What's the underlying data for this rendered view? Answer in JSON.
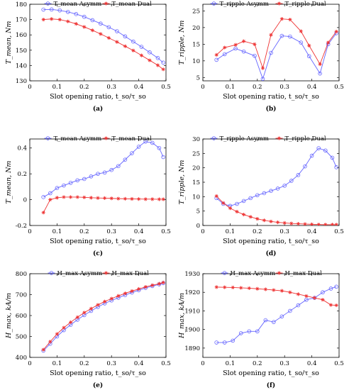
{
  "chart_data": [
    {
      "type": "line",
      "panel_label": "(a)",
      "xlabel": "Slot opening ratio, t_so/τ_so",
      "ylabel": "T_mean, Nm",
      "xlim": [
        0,
        0.5
      ],
      "ylim": [
        130,
        180
      ],
      "xticks": [
        0,
        0.1,
        0.2,
        0.3,
        0.4,
        0.5
      ],
      "yticks": [
        130,
        140,
        150,
        160,
        170,
        180
      ],
      "legend": "top-center",
      "series": [
        {
          "name": "T_mean Asymm",
          "color": "#6666ff",
          "marker": "circle",
          "x": [
            0.05,
            0.08,
            0.11,
            0.14,
            0.17,
            0.2,
            0.23,
            0.26,
            0.29,
            0.32,
            0.35,
            0.38,
            0.41,
            0.44,
            0.47,
            0.49
          ],
          "y": [
            176.5,
            176.6,
            176.0,
            175.0,
            173.6,
            171.8,
            169.6,
            167.4,
            165.0,
            162.4,
            159.0,
            155.6,
            152.2,
            148.6,
            144.9,
            141.9
          ]
        },
        {
          "name": "T_mean Dual",
          "color": "#ee3333",
          "marker": "star",
          "x": [
            0.05,
            0.08,
            0.11,
            0.14,
            0.17,
            0.2,
            0.23,
            0.26,
            0.29,
            0.32,
            0.35,
            0.38,
            0.41,
            0.44,
            0.47,
            0.49
          ],
          "y": [
            170.0,
            170.4,
            170.0,
            168.8,
            167.2,
            165.2,
            163.0,
            160.6,
            158.0,
            155.4,
            152.6,
            149.8,
            146.6,
            143.4,
            140.2,
            137.5
          ]
        }
      ]
    },
    {
      "type": "line",
      "panel_label": "(b)",
      "xlabel": "Slot opening ratio, t_so/τ_so",
      "ylabel": "T_ripple, Nm",
      "xlim": [
        0,
        0.5
      ],
      "ylim": [
        4,
        27
      ],
      "xticks": [
        0,
        0.1,
        0.2,
        0.3,
        0.4,
        0.5
      ],
      "yticks": [
        5,
        10,
        15,
        20,
        25
      ],
      "legend": "top-center",
      "series": [
        {
          "name": "T_ripple Asymm",
          "color": "#6666ff",
          "marker": "circle",
          "x": [
            0.05,
            0.08,
            0.12,
            0.15,
            0.19,
            0.22,
            0.25,
            0.29,
            0.32,
            0.36,
            0.39,
            0.43,
            0.46,
            0.49
          ],
          "y": [
            10.3,
            12.0,
            13.7,
            12.8,
            11.5,
            4.6,
            12.4,
            17.5,
            17.3,
            15.5,
            11.4,
            6.2,
            15.0,
            18.3
          ]
        },
        {
          "name": "T_ripple Dual",
          "color": "#ee3333",
          "marker": "star",
          "x": [
            0.05,
            0.08,
            0.12,
            0.15,
            0.19,
            0.22,
            0.25,
            0.29,
            0.32,
            0.36,
            0.39,
            0.43,
            0.46,
            0.49
          ],
          "y": [
            11.8,
            14.0,
            14.8,
            15.9,
            15.0,
            7.8,
            17.8,
            22.6,
            22.4,
            18.9,
            14.6,
            9.0,
            15.5,
            18.8
          ]
        }
      ]
    },
    {
      "type": "line",
      "panel_label": "(c)",
      "xlabel": "Slot opening ratio, t_so/τ_so",
      "ylabel": "T_mean, Nm",
      "xlim": [
        0,
        0.5
      ],
      "ylim": [
        -0.2,
        0.47
      ],
      "xticks": [
        0,
        0.1,
        0.2,
        0.3,
        0.4,
        0.5
      ],
      "yticks": [
        -0.2,
        0,
        0.2,
        0.4
      ],
      "legend": "top-center",
      "series": [
        {
          "name": "T_mean Asymm",
          "color": "#6666ff",
          "marker": "circle",
          "x": [
            0.05,
            0.075,
            0.1,
            0.125,
            0.15,
            0.175,
            0.2,
            0.225,
            0.25,
            0.275,
            0.3,
            0.325,
            0.35,
            0.375,
            0.4,
            0.425,
            0.45,
            0.475,
            0.49
          ],
          "y": [
            0.02,
            0.05,
            0.09,
            0.11,
            0.13,
            0.15,
            0.16,
            0.18,
            0.2,
            0.21,
            0.23,
            0.26,
            0.31,
            0.36,
            0.41,
            0.45,
            0.44,
            0.4,
            0.33
          ]
        },
        {
          "name": "T_mean Dual",
          "color": "#ee3333",
          "marker": "star",
          "x": [
            0.05,
            0.075,
            0.1,
            0.125,
            0.15,
            0.175,
            0.2,
            0.225,
            0.25,
            0.275,
            0.3,
            0.325,
            0.35,
            0.375,
            0.4,
            0.425,
            0.45,
            0.475,
            0.49
          ],
          "y": [
            -0.1,
            0.0,
            0.015,
            0.02,
            0.02,
            0.02,
            0.018,
            0.015,
            0.013,
            0.012,
            0.01,
            0.008,
            0.007,
            0.006,
            0.005,
            0.004,
            0.004,
            0.003,
            0.003
          ]
        }
      ]
    },
    {
      "type": "line",
      "panel_label": "(d)",
      "xlabel": "Slot opening ratio, t_so/τ_so",
      "ylabel": "T_ripple, Nm",
      "xlim": [
        0,
        0.5
      ],
      "ylim": [
        0,
        30
      ],
      "xticks": [
        0,
        0.1,
        0.2,
        0.3,
        0.4,
        0.5
      ],
      "yticks": [
        0,
        5,
        10,
        15,
        20,
        25,
        30
      ],
      "legend": "top-center",
      "series": [
        {
          "name": "T_ripple Asymm",
          "color": "#6666ff",
          "marker": "circle",
          "x": [
            0.05,
            0.075,
            0.1,
            0.125,
            0.15,
            0.175,
            0.2,
            0.225,
            0.25,
            0.275,
            0.3,
            0.325,
            0.35,
            0.375,
            0.4,
            0.425,
            0.45,
            0.475,
            0.49
          ],
          "y": [
            9.5,
            7.5,
            6.8,
            7.5,
            8.5,
            9.5,
            10.5,
            11.2,
            12.0,
            12.8,
            13.8,
            15.5,
            17.5,
            20.5,
            24.2,
            26.8,
            26.0,
            23.5,
            20.2
          ]
        },
        {
          "name": "T_ripple Dual",
          "color": "#ee3333",
          "marker": "star",
          "x": [
            0.05,
            0.075,
            0.1,
            0.125,
            0.15,
            0.175,
            0.2,
            0.225,
            0.25,
            0.275,
            0.3,
            0.325,
            0.35,
            0.375,
            0.4,
            0.425,
            0.45,
            0.475,
            0.49
          ],
          "y": [
            10.2,
            7.8,
            6.0,
            4.8,
            3.8,
            3.0,
            2.3,
            1.8,
            1.4,
            1.1,
            0.9,
            0.7,
            0.6,
            0.5,
            0.4,
            0.35,
            0.3,
            0.3,
            0.3
          ]
        }
      ]
    },
    {
      "type": "line",
      "panel_label": "(e)",
      "xlabel": "Slot opening ratio, t_so/τ_so",
      "ylabel": "H_max, kA/m",
      "xlim": [
        0,
        0.5
      ],
      "ylim": [
        400,
        800
      ],
      "xticks": [
        0,
        0.1,
        0.2,
        0.3,
        0.4,
        0.5
      ],
      "yticks": [
        400,
        500,
        600,
        700,
        800
      ],
      "legend": "top-center",
      "series": [
        {
          "name": "H_max Asymm",
          "color": "#6666ff",
          "marker": "circle",
          "x": [
            0.05,
            0.075,
            0.1,
            0.125,
            0.15,
            0.175,
            0.2,
            0.225,
            0.25,
            0.275,
            0.3,
            0.325,
            0.35,
            0.375,
            0.4,
            0.425,
            0.45,
            0.475,
            0.49
          ],
          "y": [
            432,
            465,
            500,
            530,
            556,
            580,
            602,
            622,
            641,
            658,
            672,
            685,
            698,
            710,
            721,
            732,
            741,
            749,
            755
          ]
        },
        {
          "name": "H_max Dual",
          "color": "#ee3333",
          "marker": "star",
          "x": [
            0.05,
            0.075,
            0.1,
            0.125,
            0.15,
            0.175,
            0.2,
            0.225,
            0.25,
            0.275,
            0.3,
            0.325,
            0.35,
            0.375,
            0.4,
            0.425,
            0.45,
            0.475,
            0.49
          ],
          "y": [
            437,
            475,
            512,
            542,
            568,
            592,
            614,
            633,
            651,
            667,
            681,
            694,
            706,
            717,
            727,
            737,
            745,
            752,
            758
          ]
        }
      ]
    },
    {
      "type": "line",
      "panel_label": "(f)",
      "xlabel": "Slot opening ratio, t_so/τ_so",
      "ylabel": "H_max, kA/m",
      "xlim": [
        0,
        0.5
      ],
      "ylim": [
        1885,
        1930
      ],
      "xticks": [
        0,
        0.1,
        0.2,
        0.3,
        0.4,
        0.5
      ],
      "yticks": [
        1890,
        1900,
        1910,
        1920,
        1930
      ],
      "legend": "top-center",
      "series": [
        {
          "name": "H_max Asymm",
          "color": "#6666ff",
          "marker": "circle",
          "x": [
            0.05,
            0.08,
            0.11,
            0.14,
            0.17,
            0.2,
            0.23,
            0.26,
            0.29,
            0.32,
            0.35,
            0.38,
            0.41,
            0.44,
            0.47,
            0.49
          ],
          "y": [
            1893,
            1893,
            1894,
            1898,
            1899,
            1899,
            1905,
            1904,
            1907,
            1910,
            1913,
            1916,
            1917,
            1920,
            1922,
            1923
          ]
        },
        {
          "name": "H_max Dual",
          "color": "#ee3333",
          "marker": "star",
          "x": [
            0.05,
            0.08,
            0.11,
            0.14,
            0.17,
            0.2,
            0.23,
            0.26,
            0.29,
            0.32,
            0.35,
            0.38,
            0.41,
            0.44,
            0.47,
            0.49
          ],
          "y": [
            1922.8,
            1922.7,
            1922.6,
            1922.4,
            1922.2,
            1921.9,
            1921.6,
            1921.2,
            1920.8,
            1920.0,
            1919.0,
            1918.0,
            1917.0,
            1916.0,
            1913.2,
            1913.0
          ]
        }
      ]
    }
  ]
}
